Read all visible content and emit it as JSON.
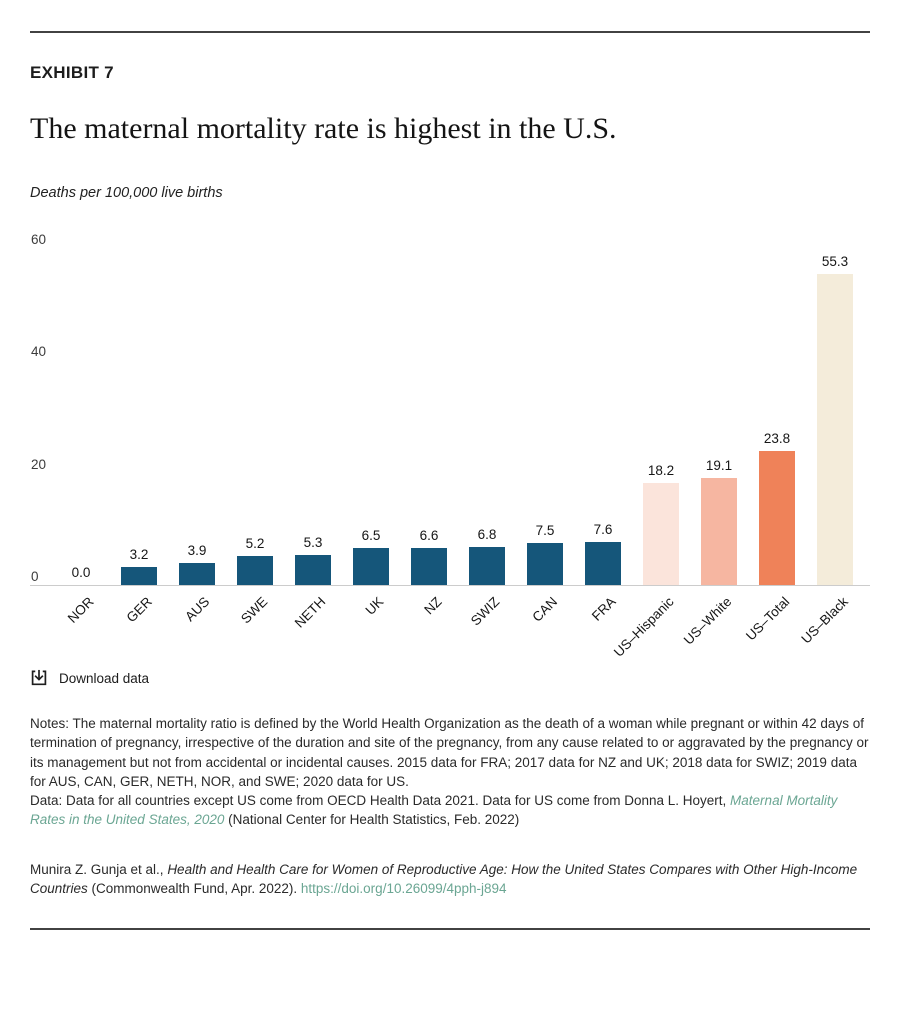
{
  "exhibit": {
    "label": "EXHIBIT 7"
  },
  "title": "The maternal mortality rate is highest in the U.S.",
  "subtitle": "Deaths per 100,000 live births",
  "chart_data": {
    "type": "bar",
    "title": "The maternal mortality rate is highest in the U.S.",
    "ylabel": "Deaths per 100,000 live births",
    "categories": [
      "NOR",
      "GER",
      "AUS",
      "SWE",
      "NETH",
      "UK",
      "NZ",
      "SWIZ",
      "CAN",
      "FRA",
      "US–Hispanic",
      "US–White",
      "US–Total",
      "US–Black"
    ],
    "values": [
      0.0,
      3.2,
      3.9,
      5.2,
      5.3,
      6.5,
      6.6,
      6.8,
      7.5,
      7.6,
      18.2,
      19.1,
      23.8,
      55.3
    ],
    "labels": [
      "0.0",
      "3.2",
      "3.9",
      "5.2",
      "5.3",
      "6.5",
      "6.6",
      "6.8",
      "7.5",
      "7.6",
      "18.2",
      "19.1",
      "23.8",
      "55.3"
    ],
    "bar_colors": [
      "#15567A",
      "#15567A",
      "#15567A",
      "#15567A",
      "#15567A",
      "#15567A",
      "#15567A",
      "#15567A",
      "#15567A",
      "#15567A",
      "#FBE4DB",
      "#F6B6A1",
      "#EF8259",
      "#F4ECDA"
    ],
    "yticks": [
      0,
      20,
      40,
      60
    ],
    "ylim": [
      0,
      60
    ],
    "grid": false,
    "legend": "none"
  },
  "colors": {
    "country_bar": "#15567A",
    "us_hispanic_bar": "#FBE4DB",
    "us_white_bar": "#F6B6A1",
    "us_total_bar": "#EF8259",
    "us_black_bar": "#F4ECDA",
    "link": "#6BA693",
    "rule": "#424242",
    "axis_line": "#CCCCCC"
  },
  "download": {
    "label": "Download data",
    "icon": "download-icon"
  },
  "notes": {
    "text": "Notes: The maternal mortality ratio is defined by the World Health Organization as the death of a woman while pregnant or within 42 days of termination of pregnancy, irrespective of the duration and site of the pregnancy, from any cause related to or aggravated by the pregnancy or its management but not from accidental or incidental causes. 2015 data for FRA; 2017 data for NZ and UK; 2018 data for SWIZ; 2019 data for AUS, CAN, GER, NETH, NOR, and SWE; 2020 data for US."
  },
  "data_source": {
    "prefix": "Data: Data for all countries except US come from OECD Health Data 2021. Data for US come from Donna L. Hoyert, ",
    "link": "Maternal Mortality Rates in the United States, 2020",
    "suffix": " (National Center for Health Statistics, Feb. 2022)"
  },
  "citation": {
    "prefix": "Munira Z. Gunja et al., ",
    "work": "Health and Health Care for Women of Reproductive Age: How the United States Compares with Other High-Income Countries",
    "middle": " (Commonwealth Fund, Apr. 2022). ",
    "link": "https://doi.org/10.26099/4pph-j894"
  }
}
